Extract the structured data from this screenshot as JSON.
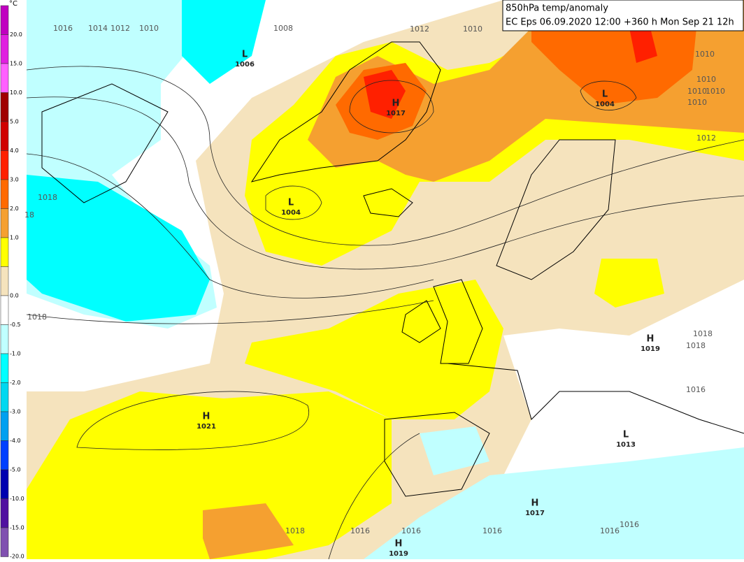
{
  "header": {
    "line1": "850hPa temp/anomaly",
    "line2": "EC Eps 06.09.2020 12:00 +360 h Mon Sep 21 12h"
  },
  "legend": {
    "unit": "°C",
    "labels": [
      "20.0",
      "15.0",
      "10.0",
      "5.0",
      "4.0",
      "3.0",
      "2.0",
      "1.0",
      "0.0",
      "-0.5",
      "-1.0",
      "-2.0",
      "-3.0",
      "-4.0",
      "-5.0",
      "-10.0",
      "-15.0",
      "-20.0"
    ],
    "colors": [
      "#c000c0",
      "#e020e0",
      "#ff60ff",
      "#a00000",
      "#d00000",
      "#ff2000",
      "#ff6a00",
      "#f5a030",
      "#ffff00",
      "#f5e3bd",
      "#ffffff",
      "#c0ffff",
      "#00ffff",
      "#00d8f0",
      "#00a0f0",
      "#0040ff",
      "#0000b0",
      "#5010a0",
      "#8050b0"
    ]
  },
  "systems": [
    {
      "letter": "L",
      "value": "1006"
    },
    {
      "letter": "H",
      "value": "1017"
    },
    {
      "letter": "L",
      "value": "1004"
    },
    {
      "letter": "L",
      "value": "1004"
    },
    {
      "letter": "H",
      "value": "1019"
    },
    {
      "letter": "H",
      "value": "1021"
    },
    {
      "letter": "L",
      "value": "1013"
    },
    {
      "letter": "H",
      "value": "1017"
    },
    {
      "letter": "H",
      "value": "1019"
    }
  ],
  "isobar_labels": [
    "1016",
    "1014",
    "1012",
    "1010",
    "1008",
    "1012",
    "1010",
    "1010",
    "1010",
    "1010",
    "1010",
    "1010",
    "1012",
    "1018",
    "18",
    "1018",
    "1018",
    "1018",
    "1016",
    "1018",
    "1016",
    "1016",
    "1016",
    "1016",
    "1016"
  ]
}
